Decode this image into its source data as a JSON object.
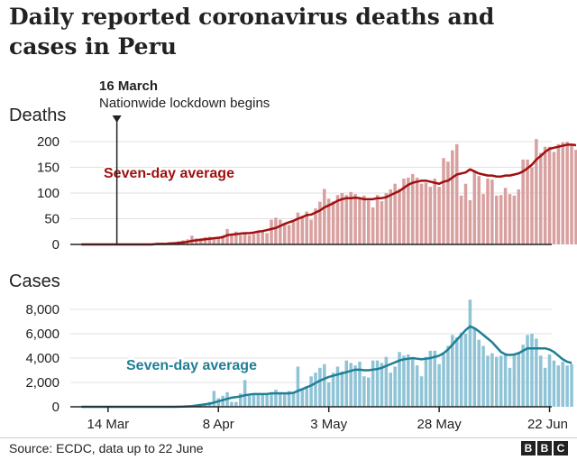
{
  "title": "Daily reported coronavirus deaths and cases in Peru",
  "source": "Source: ECDC, data up to 22 June",
  "logo_text": "BBC",
  "colors": {
    "deaths_bar": "#d9a0a0",
    "deaths_line": "#a01010",
    "cases_bar": "#8fc4d6",
    "cases_line": "#1f7f96",
    "axis": "#222222",
    "grid": "#e0e0e0"
  },
  "chart_data": [
    {
      "type": "bar",
      "title": "Deaths",
      "ylim": [
        0,
        200
      ],
      "yticks": [
        "0",
        "50",
        "100",
        "150",
        "200"
      ],
      "annotation": {
        "date": "16 March",
        "label": "Nationwide lockdown begins",
        "x": "2020-03-16"
      },
      "x_start": "2020-03-08",
      "x_end": "2020-06-22",
      "xticks": [
        {
          "label": "14 Mar",
          "x": "2020-03-14"
        },
        {
          "label": "8 Apr",
          "x": "2020-04-08"
        },
        {
          "label": "3 May",
          "x": "2020-05-03"
        },
        {
          "label": "28 May",
          "x": "2020-05-28"
        },
        {
          "label": "22 Jun",
          "x": "2020-06-22"
        }
      ],
      "series": [
        {
          "name": "Deaths",
          "kind": "bar",
          "values": [
            0,
            0,
            0,
            0,
            0,
            0,
            0,
            0,
            0,
            0,
            0,
            0,
            0,
            0,
            0,
            0,
            1,
            2,
            1,
            2,
            4,
            5,
            6,
            8,
            10,
            17,
            12,
            12,
            14,
            15,
            12,
            15,
            18,
            30,
            18,
            25,
            18,
            20,
            18,
            20,
            25,
            28,
            22,
            48,
            52,
            48,
            42,
            38,
            45,
            62,
            56,
            64,
            48,
            70,
            83,
            108,
            89,
            84,
            96,
            100,
            96,
            102,
            98,
            88,
            95,
            85,
            72,
            96,
            84,
            100,
            107,
            118,
            108,
            128,
            130,
            137,
            130,
            118,
            120,
            112,
            128,
            112,
            168,
            161,
            183,
            195,
            95,
            118,
            86,
            142,
            133,
            98,
            128,
            126,
            95,
            96,
            110,
            98,
            95,
            107,
            165,
            165,
            150,
            205,
            178,
            190,
            190,
            180,
            195,
            199,
            200,
            195,
            184
          ],
          "color": "#d9a0a0"
        },
        {
          "name": "Seven-day average",
          "kind": "line",
          "values": [
            0,
            0,
            0,
            0,
            0,
            0,
            0,
            0,
            0,
            0,
            0,
            0,
            0,
            0,
            0,
            0,
            0,
            1,
            1,
            1,
            2,
            2,
            3,
            4,
            5,
            7,
            8,
            9,
            10,
            11,
            12,
            13,
            14,
            18,
            19,
            20,
            21,
            22,
            22,
            23,
            25,
            26,
            28,
            30,
            32,
            36,
            40,
            43,
            46,
            50,
            53,
            57,
            58,
            62,
            66,
            72,
            76,
            80,
            85,
            88,
            90,
            90,
            91,
            90,
            88,
            88,
            88,
            90,
            90,
            92,
            96,
            100,
            104,
            110,
            116,
            120,
            122,
            124,
            124,
            122,
            120,
            118,
            122,
            124,
            130,
            136,
            138,
            140,
            146,
            142,
            138,
            136,
            134,
            134,
            132,
            132,
            134,
            134,
            136,
            138,
            142,
            148,
            155,
            165,
            172,
            180,
            186,
            188,
            190,
            192,
            194,
            194,
            193
          ],
          "color": "#a01010",
          "label": "Seven-day average"
        }
      ]
    },
    {
      "type": "bar",
      "title": "Cases",
      "ylim": [
        0,
        8000
      ],
      "yticks": [
        "0",
        "2,000",
        "4,000",
        "6,000",
        "8,000"
      ],
      "x_start": "2020-03-08",
      "x_end": "2020-06-22",
      "xticks": [
        {
          "label": "14 Mar",
          "x": "2020-03-14"
        },
        {
          "label": "8 Apr",
          "x": "2020-04-08"
        },
        {
          "label": "3 May",
          "x": "2020-05-03"
        },
        {
          "label": "28 May",
          "x": "2020-05-28"
        },
        {
          "label": "22 Jun",
          "x": "2020-06-22"
        }
      ],
      "series": [
        {
          "name": "Cases",
          "kind": "bar",
          "values": [
            0,
            0,
            0,
            0,
            0,
            0,
            0,
            0,
            0,
            0,
            0,
            0,
            0,
            0,
            0,
            0,
            0,
            0,
            0,
            0,
            0,
            50,
            60,
            80,
            100,
            150,
            200,
            250,
            300,
            400,
            1300,
            700,
            900,
            1200,
            400,
            400,
            1100,
            2200,
            900,
            1100,
            1100,
            1000,
            1000,
            1200,
            1400,
            1200,
            1000,
            1300,
            1100,
            3300,
            1500,
            1700,
            2500,
            2800,
            3200,
            3500,
            2000,
            2800,
            3300,
            2900,
            3800,
            3600,
            3400,
            3700,
            2500,
            2400,
            3800,
            3800,
            3600,
            4100,
            2800,
            3300,
            4500,
            4200,
            4300,
            4000,
            3400,
            2500,
            4100,
            4600,
            4600,
            3500,
            4300,
            5000,
            5900,
            5700,
            6100,
            6000,
            8800,
            6500,
            5500,
            5000,
            4200,
            4400,
            4100,
            4200,
            4400,
            3200,
            4300,
            4500,
            5100,
            5900,
            6000,
            5600,
            4200,
            3200,
            4300,
            3800,
            3400,
            3700,
            3400,
            3500
          ],
          "color": "#8fc4d6"
        },
        {
          "name": "Seven-day average",
          "kind": "line",
          "values": [
            0,
            0,
            0,
            0,
            0,
            0,
            0,
            0,
            0,
            0,
            0,
            0,
            0,
            0,
            0,
            0,
            0,
            0,
            0,
            0,
            0,
            0,
            10,
            20,
            40,
            60,
            100,
            150,
            200,
            250,
            350,
            450,
            550,
            650,
            750,
            800,
            850,
            950,
            1000,
            1050,
            1050,
            1050,
            1050,
            1100,
            1100,
            1100,
            1100,
            1100,
            1150,
            1300,
            1450,
            1600,
            1750,
            1950,
            2150,
            2300,
            2450,
            2550,
            2650,
            2750,
            2850,
            2950,
            3050,
            3050,
            3000,
            3000,
            3050,
            3100,
            3200,
            3350,
            3500,
            3650,
            3800,
            3900,
            3950,
            4000,
            3950,
            3900,
            3950,
            4000,
            4100,
            4200,
            4400,
            4700,
            5100,
            5500,
            5900,
            6300,
            6600,
            6450,
            6200,
            5900,
            5600,
            5300,
            4900,
            4500,
            4300,
            4250,
            4300,
            4400,
            4600,
            4800,
            4800,
            4800,
            4800,
            4800,
            4700,
            4500,
            4200,
            3900,
            3700,
            3600
          ],
          "color": "#1f7f96",
          "label": "Seven-day average"
        }
      ]
    }
  ]
}
